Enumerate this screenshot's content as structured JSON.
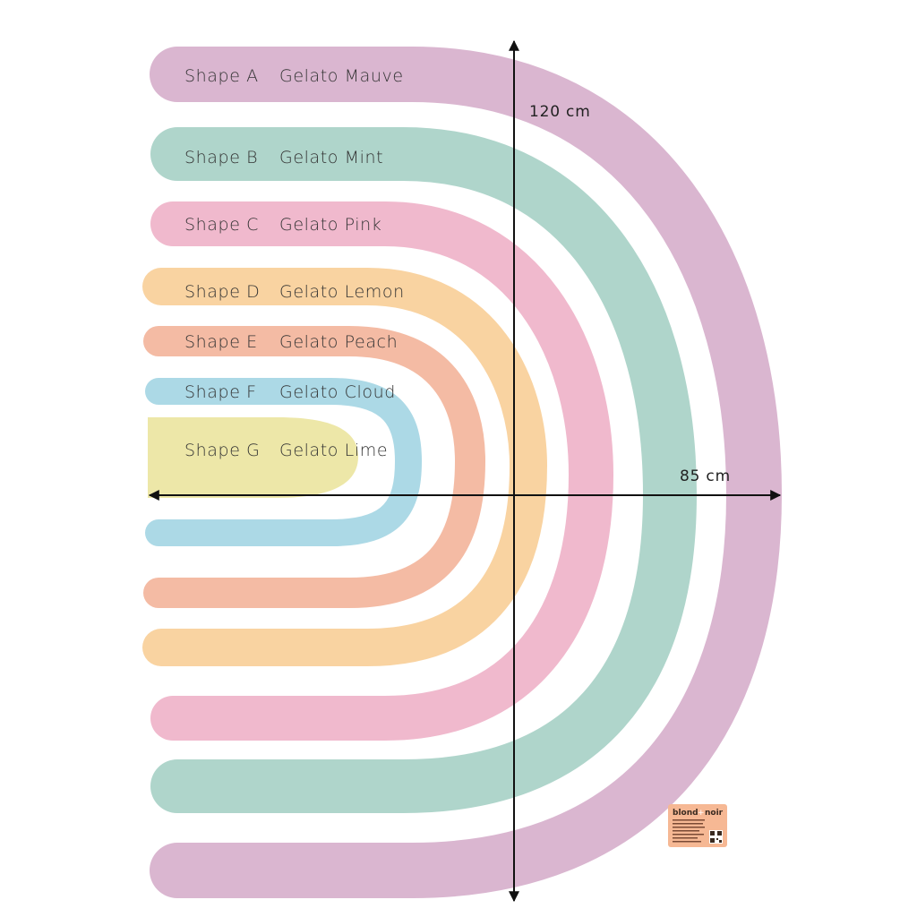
{
  "shapes": [
    {
      "shape": "Shape A",
      "color": "Gelato Mauve",
      "hex": "#dab6d0"
    },
    {
      "shape": "Shape B",
      "color": "Gelato Mint",
      "hex": "#afd5cb"
    },
    {
      "shape": "Shape C",
      "color": "Gelato Pink",
      "hex": "#f0b9cd"
    },
    {
      "shape": "Shape D",
      "color": "Gelato Lemon",
      "hex": "#f9d3a1"
    },
    {
      "shape": "Shape E",
      "color": "Gelato Peach",
      "hex": "#f4bba4"
    },
    {
      "shape": "Shape F",
      "color": "Gelato Cloud",
      "hex": "#acd9e6"
    },
    {
      "shape": "Shape G",
      "color": "Gelato Lime",
      "hex": "#ede7a8"
    }
  ],
  "dimensions": {
    "height": "120 cm",
    "width": "85 cm"
  },
  "brand": {
    "left": "blond",
    "plus": "+",
    "right": "noir",
    "tag_color": "#f6b894"
  }
}
